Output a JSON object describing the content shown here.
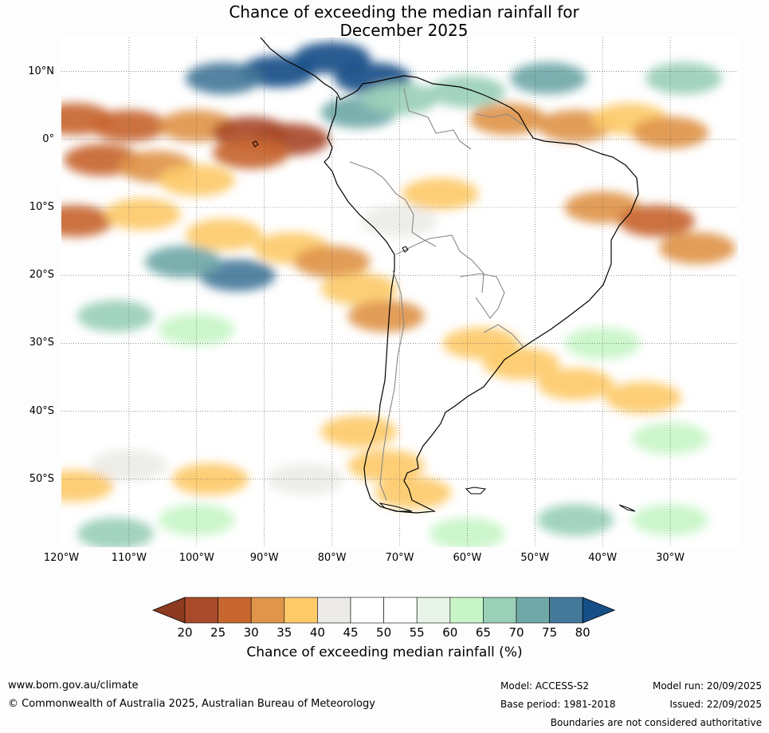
{
  "title_line1": "Chance of exceeding the median rainfall for",
  "title_line2": "December 2025",
  "lat_labels": [
    "10°N",
    "0°",
    "10°S",
    "20°S",
    "30°S",
    "40°S",
    "50°S"
  ],
  "lon_labels": [
    "120°W",
    "110°W",
    "100°W",
    "90°W",
    "80°W",
    "70°W",
    "60°W",
    "50°W",
    "40°W",
    "30°W"
  ],
  "colorbar": {
    "ticks": [
      "20",
      "25",
      "30",
      "35",
      "40",
      "45",
      "50",
      "55",
      "60",
      "65",
      "70",
      "75",
      "80"
    ],
    "colors": [
      "#8c3a20",
      "#a94a2a",
      "#c8662f",
      "#e0954a",
      "#fdca6a",
      "#ecebe7",
      "#ffffff",
      "#ffffff",
      "#e8f4e8",
      "#c8f5c8",
      "#9acfb8",
      "#70a8a8",
      "#44799a",
      "#164f88"
    ],
    "label": "Chance of exceeding median rainfall (%)"
  },
  "footer": {
    "website": "www.bom.gov.au/climate",
    "copyright": "© Commonwealth of Australia 2025, Australian Bureau of Meteorology",
    "model": "Model: ACCESS-S2",
    "base_period": "Base period: 1981-2018",
    "model_run": "Model run: 20/09/2025",
    "issued": "Issued: 22/09/2025",
    "disclaimer": "Boundaries are not considered authoritative"
  },
  "map_cells": [
    {
      "lon": -118,
      "lat": 3,
      "pct": 25
    },
    {
      "lon": -110,
      "lat": 2,
      "pct": 25
    },
    {
      "lon": -100,
      "lat": 2,
      "pct": 30
    },
    {
      "lon": -92,
      "lat": 1,
      "pct": 20
    },
    {
      "lon": -86,
      "lat": 0,
      "pct": 20
    },
    {
      "lon": -92,
      "lat": -2,
      "pct": 25
    },
    {
      "lon": -114,
      "lat": -3,
      "pct": 25
    },
    {
      "lon": -106,
      "lat": -4,
      "pct": 30
    },
    {
      "lon": -100,
      "lat": -6,
      "pct": 35
    },
    {
      "lon": -118,
      "lat": -12,
      "pct": 25
    },
    {
      "lon": -108,
      "lat": -11,
      "pct": 35
    },
    {
      "lon": -96,
      "lat": -14,
      "pct": 35
    },
    {
      "lon": -86,
      "lat": -16,
      "pct": 35
    },
    {
      "lon": -80,
      "lat": -18,
      "pct": 30
    },
    {
      "lon": -76,
      "lat": -22,
      "pct": 35
    },
    {
      "lon": -72,
      "lat": -26,
      "pct": 30
    },
    {
      "lon": -94,
      "lat": -20,
      "pct": 75
    },
    {
      "lon": -102,
      "lat": -18,
      "pct": 70
    },
    {
      "lon": -88,
      "lat": 10,
      "pct": 80
    },
    {
      "lon": -80,
      "lat": 12,
      "pct": 80
    },
    {
      "lon": -74,
      "lat": 9,
      "pct": 80
    },
    {
      "lon": -96,
      "lat": 9,
      "pct": 75
    },
    {
      "lon": -76,
      "lat": 4,
      "pct": 70
    },
    {
      "lon": -70,
      "lat": 6,
      "pct": 65
    },
    {
      "lon": -60,
      "lat": 7,
      "pct": 65
    },
    {
      "lon": -54,
      "lat": 3,
      "pct": 30
    },
    {
      "lon": -44,
      "lat": 2,
      "pct": 30
    },
    {
      "lon": -36,
      "lat": 3,
      "pct": 35
    },
    {
      "lon": -30,
      "lat": 1,
      "pct": 30
    },
    {
      "lon": -40,
      "lat": -10,
      "pct": 30
    },
    {
      "lon": -32,
      "lat": -12,
      "pct": 25
    },
    {
      "lon": -26,
      "lat": -16,
      "pct": 30
    },
    {
      "lon": -48,
      "lat": 9,
      "pct": 70
    },
    {
      "lon": -28,
      "lat": 9,
      "pct": 65
    },
    {
      "lon": -58,
      "lat": -30,
      "pct": 35
    },
    {
      "lon": -52,
      "lat": -33,
      "pct": 35
    },
    {
      "lon": -44,
      "lat": -36,
      "pct": 35
    },
    {
      "lon": -34,
      "lat": -38,
      "pct": 35
    },
    {
      "lon": -76,
      "lat": -43,
      "pct": 35
    },
    {
      "lon": -72,
      "lat": -48,
      "pct": 35
    },
    {
      "lon": -68,
      "lat": -52,
      "pct": 35
    },
    {
      "lon": -110,
      "lat": -48,
      "pct": 40
    },
    {
      "lon": -118,
      "lat": -51,
      "pct": 35
    },
    {
      "lon": -98,
      "lat": -50,
      "pct": 35
    },
    {
      "lon": -84,
      "lat": -50,
      "pct": 40
    },
    {
      "lon": -100,
      "lat": -28,
      "pct": 60
    },
    {
      "lon": -112,
      "lat": -26,
      "pct": 65
    },
    {
      "lon": -40,
      "lat": -30,
      "pct": 60
    },
    {
      "lon": -30,
      "lat": -44,
      "pct": 60
    },
    {
      "lon": -44,
      "lat": -56,
      "pct": 65
    },
    {
      "lon": -30,
      "lat": -56,
      "pct": 60
    },
    {
      "lon": -100,
      "lat": -56,
      "pct": 60
    },
    {
      "lon": -112,
      "lat": -58,
      "pct": 65
    },
    {
      "lon": -60,
      "lat": -58,
      "pct": 60
    },
    {
      "lon": -70,
      "lat": -12,
      "pct": 40
    },
    {
      "lon": -56,
      "lat": -18,
      "pct": 45
    },
    {
      "lon": -64,
      "lat": -8,
      "pct": 35
    },
    {
      "lon": -86,
      "lat": -32,
      "pct": 45
    },
    {
      "lon": -52,
      "lat": -46,
      "pct": 45
    },
    {
      "lon": -118,
      "lat": -36,
      "pct": 45
    }
  ]
}
